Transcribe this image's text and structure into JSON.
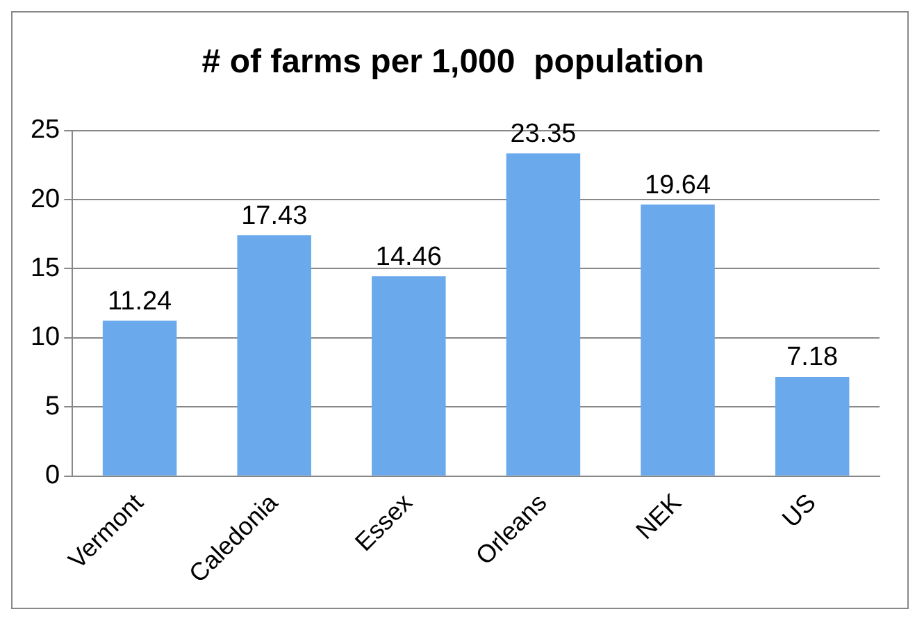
{
  "chart_data": {
    "type": "bar",
    "title": "# of farms per 1,000  population",
    "categories": [
      "Vermont",
      "Caledonia",
      "Essex",
      "Orleans",
      "NEK",
      "US"
    ],
    "values": [
      11.24,
      17.43,
      14.46,
      23.35,
      19.64,
      7.18
    ],
    "color": "#6aa9ec",
    "ylim": [
      0,
      25
    ],
    "yticks": [
      0,
      5,
      10,
      15,
      20,
      25
    ],
    "grid": "y",
    "data_labels": true,
    "legend": false
  }
}
